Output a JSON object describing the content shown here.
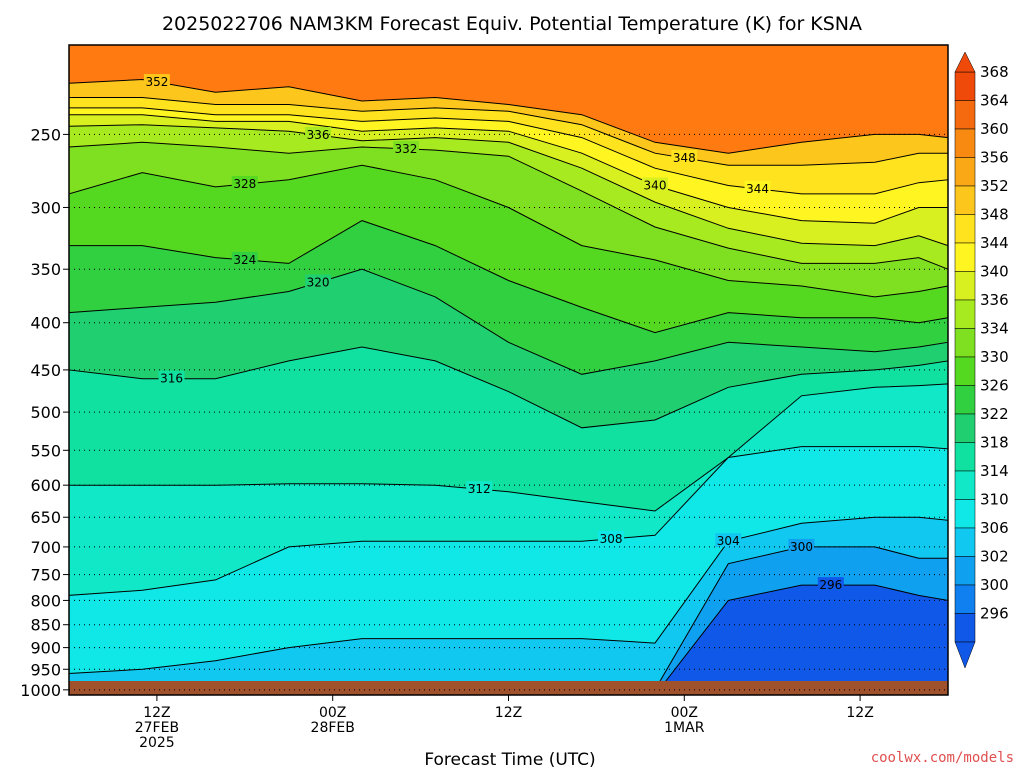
{
  "chart_data": {
    "type": "contour",
    "title": "2025022706 NAM3KM Forecast Equiv. Potential Temperature (K) for KSNA",
    "xlabel": "Forecast Time (UTC)",
    "ylabel": "",
    "source": "coolwx.com/models",
    "x_range_hours": [
      0,
      60
    ],
    "y_axis": {
      "scale": "log-pressure",
      "units": "hPa",
      "range": [
        1013,
        200
      ],
      "tick_values": [
        250,
        300,
        350,
        400,
        450,
        500,
        550,
        600,
        650,
        700,
        750,
        800,
        850,
        900,
        950,
        1000
      ],
      "tick_labels": [
        "250",
        "300",
        "350",
        "400",
        "450",
        "500",
        "550",
        "600",
        "650",
        "700",
        "750",
        "800",
        "850",
        "900",
        "950",
        "1000"
      ]
    },
    "x_ticks": [
      {
        "hour": 6,
        "lines": [
          "12Z",
          "27FEB",
          "2025"
        ]
      },
      {
        "hour": 18,
        "lines": [
          "00Z",
          "28FEB"
        ]
      },
      {
        "hour": 30,
        "lines": [
          "12Z"
        ]
      },
      {
        "hour": 42,
        "lines": [
          "00Z",
          "1MAR"
        ]
      },
      {
        "hour": 54,
        "lines": [
          "12Z"
        ]
      }
    ],
    "colorbar": {
      "labels": [
        "368",
        "364",
        "360",
        "356",
        "352",
        "348",
        "344",
        "340",
        "336",
        "334",
        "330",
        "326",
        "322",
        "318",
        "314",
        "310",
        "306",
        "302",
        "300",
        "296"
      ],
      "colors": [
        "#f04a0a",
        "#f56a0f",
        "#f88a12",
        "#fba817",
        "#fdc61c",
        "#ffe31f",
        "#fff520",
        "#d8f020",
        "#a8ea20",
        "#7ee020",
        "#55d820",
        "#30d040",
        "#20d070",
        "#10e0a0",
        "#10e8c8",
        "#10e8e8",
        "#10c8f0",
        "#10a0f0",
        "#1080f0",
        "#1058e8"
      ]
    },
    "series": [
      {
        "label": "352",
        "level": 352,
        "pressure": [
          220,
          218,
          225,
          222,
          230,
          228,
          232,
          238,
          255,
          262,
          255,
          250,
          250,
          252
        ],
        "hours": [
          0,
          5,
          10,
          15,
          20,
          25,
          30,
          35,
          40,
          45,
          50,
          55,
          58,
          60
        ]
      },
      {
        "label": "348",
        "level": 348,
        "pressure": [
          228,
          228,
          232,
          232,
          236,
          234,
          236,
          244,
          262,
          270,
          270,
          268,
          262,
          262
        ]
      },
      {
        "label": "344",
        "level": 344,
        "pressure": [
          234,
          234,
          238,
          238,
          242,
          240,
          242,
          252,
          272,
          284,
          290,
          290,
          282,
          280
        ]
      },
      {
        "label": "340",
        "level": 340,
        "pressure": [
          238,
          238,
          242,
          242,
          248,
          246,
          248,
          262,
          284,
          300,
          310,
          312,
          300,
          300
        ]
      },
      {
        "label": "336",
        "level": 336,
        "pressure": [
          245,
          244,
          246,
          248,
          254,
          252,
          255,
          272,
          296,
          316,
          328,
          330,
          322,
          330
        ]
      },
      {
        "label": "332",
        "level": 332,
        "pressure": [
          258,
          255,
          258,
          262,
          258,
          260,
          264,
          288,
          315,
          332,
          345,
          345,
          340,
          350
        ]
      },
      {
        "label": "328",
        "level": 328,
        "pressure": [
          290,
          275,
          285,
          280,
          270,
          280,
          300,
          330,
          342,
          360,
          365,
          375,
          370,
          365
        ]
      },
      {
        "label": "324",
        "level": 324,
        "pressure": [
          330,
          330,
          340,
          345,
          310,
          330,
          360,
          385,
          410,
          390,
          395,
          395,
          400,
          395
        ]
      },
      {
        "label": "320",
        "level": 320,
        "pressure": [
          390,
          385,
          380,
          370,
          350,
          375,
          420,
          455,
          440,
          420,
          425,
          430,
          425,
          420
        ]
      },
      {
        "label": "316",
        "level": 316,
        "pressure": [
          450,
          460,
          460,
          440,
          425,
          440,
          475,
          520,
          510,
          470,
          455,
          450,
          445,
          440
        ]
      },
      {
        "label": "312",
        "level": 312,
        "pressure": [
          600,
          600,
          600,
          598,
          598,
          600,
          610,
          625,
          640,
          560,
          480,
          470,
          468,
          466
        ]
      },
      {
        "label": "308",
        "level": 308,
        "pressure": [
          790,
          780,
          760,
          700,
          690,
          690,
          690,
          690,
          680,
          560,
          545,
          545,
          545,
          548
        ]
      },
      {
        "label": "304",
        "level": 304,
        "pressure": [
          960,
          950,
          930,
          900,
          880,
          880,
          880,
          880,
          890,
          690,
          660,
          650,
          650,
          655
        ]
      },
      {
        "label": "300",
        "level": 300,
        "pressure": [
          1013,
          1013,
          1013,
          1013,
          1013,
          1013,
          1013,
          1013,
          1000,
          730,
          700,
          700,
          720,
          720
        ]
      },
      {
        "label": "296",
        "level": 296,
        "pressure": [
          1013,
          1013,
          1013,
          1013,
          1013,
          1013,
          1013,
          1013,
          1013,
          800,
          770,
          770,
          790,
          800
        ]
      }
    ]
  }
}
